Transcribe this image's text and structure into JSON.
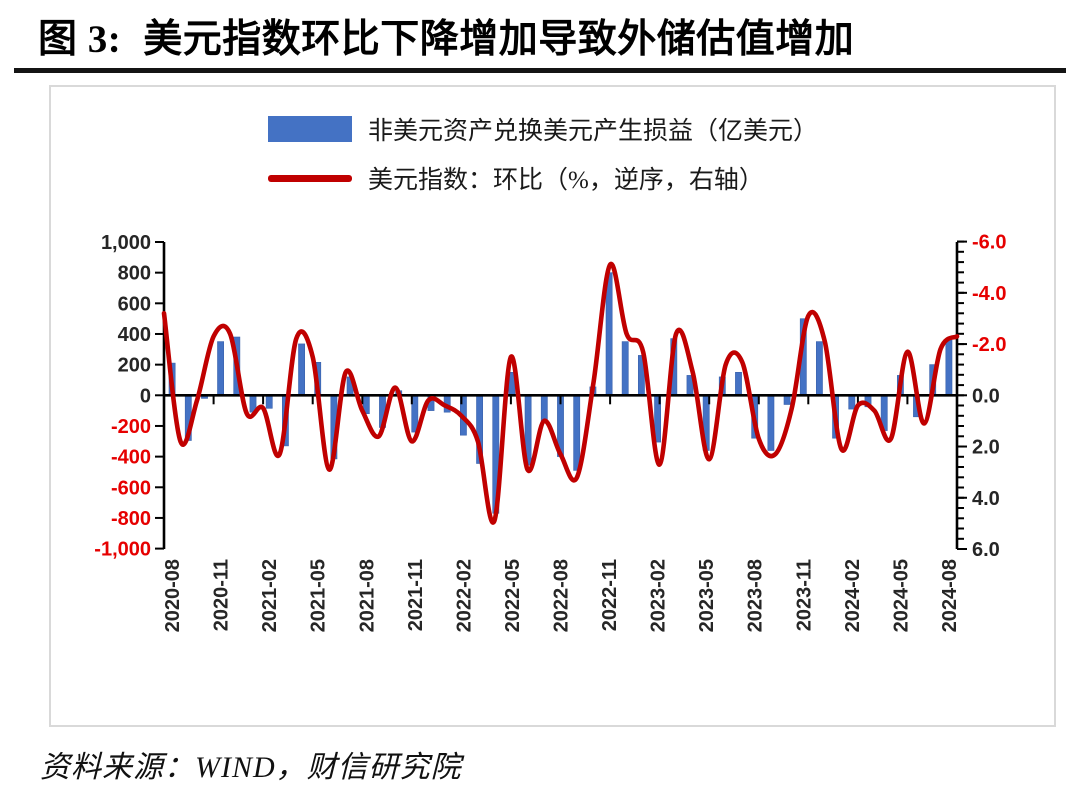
{
  "figure": {
    "title_prefix": "图 3:",
    "title_text": "美元指数环比下降增加导致外储估值增加",
    "source": "资料来源：WIND，财信研究院"
  },
  "legend": [
    {
      "label": "非美元资产兑换美元产生损益（亿美元）",
      "marker": "bar-swatch",
      "color": "#4472C4"
    },
    {
      "label": "美元指数：环比（%，逆序，右轴）",
      "marker": "line-swatch",
      "color": "#C00000"
    }
  ],
  "colors": {
    "bar": "#4472C4",
    "bar_border": "#3A62AC",
    "line": "#C00000",
    "axis": "#000000",
    "tick_label": "#262626",
    "negative_tick_label": "#E60000",
    "panel_border": "#D9D9D9"
  },
  "chart_data": {
    "type": "bar+line",
    "months": [
      "2020-08",
      "2020-09",
      "2020-10",
      "2020-11",
      "2020-12",
      "2021-01",
      "2021-02",
      "2021-03",
      "2021-04",
      "2021-05",
      "2021-06",
      "2021-07",
      "2021-08",
      "2021-09",
      "2021-10",
      "2021-11",
      "2021-12",
      "2022-01",
      "2022-02",
      "2022-03",
      "2022-04",
      "2022-05",
      "2022-06",
      "2022-07",
      "2022-08",
      "2022-09",
      "2022-10",
      "2022-11",
      "2022-12",
      "2023-01",
      "2023-02",
      "2023-03",
      "2023-04",
      "2023-05",
      "2023-06",
      "2023-07",
      "2023-08",
      "2023-09",
      "2023-10",
      "2023-11",
      "2023-12",
      "2024-01",
      "2024-02",
      "2024-03",
      "2024-04",
      "2024-05",
      "2024-06",
      "2024-07",
      "2024-08"
    ],
    "x_tick_labels": [
      "2020-08",
      "2020-11",
      "2021-02",
      "2021-05",
      "2021-08",
      "2021-11",
      "2022-02",
      "2022-05",
      "2022-08",
      "2022-11",
      "2023-02",
      "2023-05",
      "2023-08",
      "2023-11",
      "2024-02",
      "2024-05",
      "2024-08"
    ],
    "series": [
      {
        "name": "非美元资产兑换美元产生损益（亿美元）",
        "type": "bar",
        "axis": "left",
        "color": "#4472C4",
        "values": [
          210,
          -295,
          -20,
          350,
          380,
          -110,
          -85,
          -330,
          335,
          215,
          -415,
          120,
          -120,
          -210,
          30,
          -240,
          -100,
          -110,
          -260,
          -445,
          -770,
          150,
          -455,
          -175,
          -400,
          -490,
          55,
          800,
          350,
          260,
          -305,
          370,
          130,
          -360,
          120,
          150,
          -280,
          -360,
          -60,
          500,
          350,
          -280,
          -90,
          -75,
          -230,
          130,
          -140,
          200,
          360
        ]
      },
      {
        "name": "美元指数：环比（%，逆序，右轴）",
        "type": "line",
        "axis": "right",
        "color": "#C00000",
        "values": [
          -3.2,
          1.8,
          0.2,
          -2.3,
          -2.4,
          0.7,
          0.5,
          2.3,
          -2.2,
          -1.5,
          2.9,
          -0.9,
          0.6,
          1.6,
          -0.3,
          1.8,
          0.2,
          0.4,
          0.8,
          1.8,
          4.9,
          -1.5,
          2.9,
          1.0,
          2.3,
          3.2,
          -0.5,
          -5.1,
          -2.4,
          -1.7,
          2.7,
          -2.4,
          -0.9,
          2.5,
          -1.2,
          -1.3,
          1.7,
          2.3,
          0.5,
          -3.1,
          -2.1,
          2.1,
          0.4,
          0.6,
          1.7,
          -1.7,
          1.1,
          -1.8,
          -2.3
        ]
      }
    ],
    "left_axis": {
      "min": -1000,
      "max": 1000,
      "step": 200,
      "tick_labels": [
        "1,000",
        "800",
        "600",
        "400",
        "200",
        "0",
        "-200",
        "-400",
        "-600",
        "-800",
        "-1,000"
      ]
    },
    "right_axis": {
      "min": -6.0,
      "max": 6.0,
      "step": 2.0,
      "inverted": true,
      "minor_tick_step": 0.4,
      "tick_labels": [
        "-6.0",
        "-4.0",
        "-2.0",
        "0.0",
        "2.0",
        "4.0",
        "6.0"
      ]
    }
  }
}
